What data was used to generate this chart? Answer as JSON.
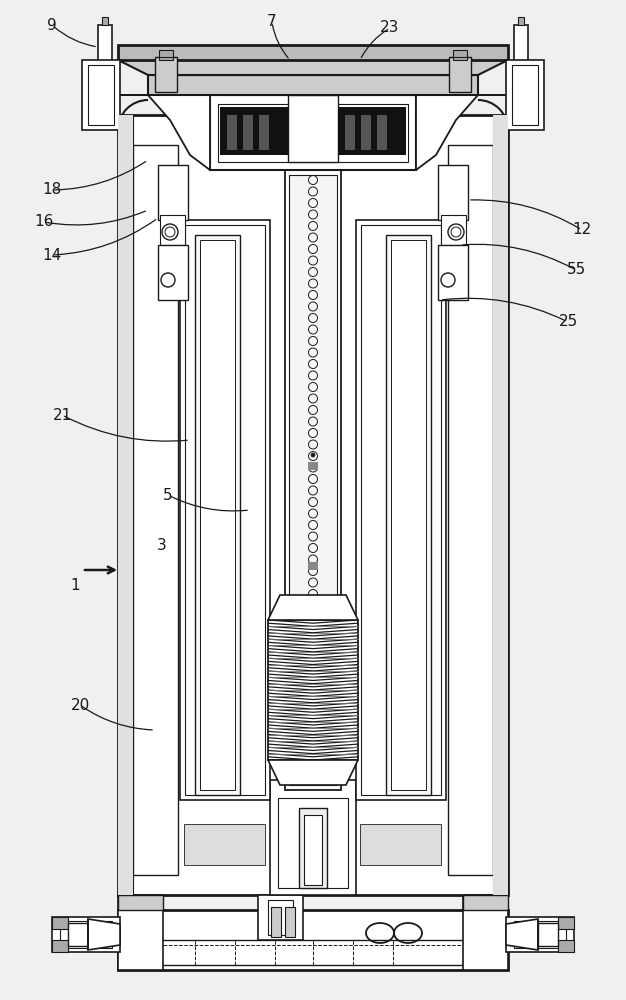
{
  "bg": "#f0f0f0",
  "lc": "#1a1a1a",
  "white": "#ffffff",
  "gray_light": "#d8d8d8",
  "gray_dark": "#888888",
  "black": "#0a0a0a",
  "lw_thick": 2.0,
  "lw_med": 1.3,
  "lw_thin": 0.8,
  "lw_hair": 0.5,
  "labels": [
    [
      "9",
      52,
      975
    ],
    [
      "7",
      272,
      978
    ],
    [
      "23",
      390,
      972
    ],
    [
      "18",
      52,
      810
    ],
    [
      "16",
      44,
      778
    ],
    [
      "14",
      52,
      745
    ],
    [
      "12",
      582,
      770
    ],
    [
      "55",
      576,
      735
    ],
    [
      "25",
      568,
      680
    ],
    [
      "21",
      62,
      590
    ],
    [
      "5",
      168,
      505
    ],
    [
      "3",
      162,
      455
    ],
    [
      "1",
      75,
      415
    ],
    [
      "20",
      80,
      295
    ]
  ]
}
